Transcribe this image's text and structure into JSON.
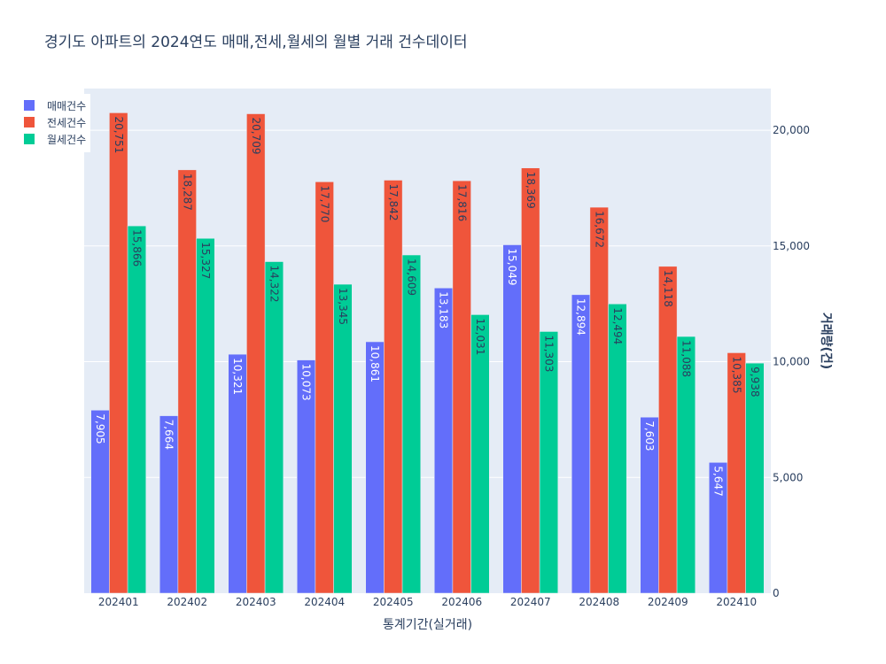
{
  "chart_data": {
    "type": "bar",
    "title": "경기도 아파트의 2024연도 매매,전세,월세의 월별 거래 건수데이터",
    "xlabel": "통계기간(실거래)",
    "ylabel": "거래량(건)",
    "ylim": [
      0,
      21800
    ],
    "yticks": [
      0,
      5000,
      10000,
      15000,
      20000
    ],
    "ytick_labels": [
      "0",
      "5,000",
      "10,000",
      "15,000",
      "20,000"
    ],
    "y_axis_side": "right",
    "legend_position": "top-left",
    "grid": true,
    "categories": [
      "202401",
      "202402",
      "202403",
      "202404",
      "202405",
      "202406",
      "202407",
      "202408",
      "202409",
      "202410"
    ],
    "series": [
      {
        "name": "매매건수",
        "color": "#636efa",
        "label_color": "#ffffff",
        "values": [
          7905,
          7664,
          10321,
          10073,
          10861,
          13183,
          15049,
          12894,
          7603,
          5647
        ],
        "labels": [
          "7,905",
          "7,664",
          "10,321",
          "10,073",
          "10,861",
          "13,183",
          "15,049",
          "12,894",
          "7,603",
          "5,647"
        ]
      },
      {
        "name": "전세건수",
        "color": "#ef553b",
        "label_color": "#2a3f5f",
        "values": [
          20751,
          18287,
          20709,
          17770,
          17842,
          17816,
          18369,
          16672,
          14118,
          10385
        ],
        "labels": [
          "20,751",
          "18,287",
          "20,709",
          "17,770",
          "17,842",
          "17,816",
          "18,369",
          "16,672",
          "14,118",
          "10,385"
        ]
      },
      {
        "name": "월세건수",
        "color": "#00cc96",
        "label_color": "#2a3f5f",
        "values": [
          15866,
          15327,
          14322,
          13345,
          14609,
          12031,
          11303,
          12494,
          11088,
          9938
        ],
        "labels": [
          "15,866",
          "15,327",
          "14,322",
          "13,345",
          "14,609",
          "12,031",
          "11,303",
          "12,494",
          "11,088",
          "9,938"
        ]
      }
    ],
    "colors": {
      "plot_bg": "#e5ecf6",
      "grid": "#ffffff",
      "text": "#2a3f5f"
    }
  }
}
